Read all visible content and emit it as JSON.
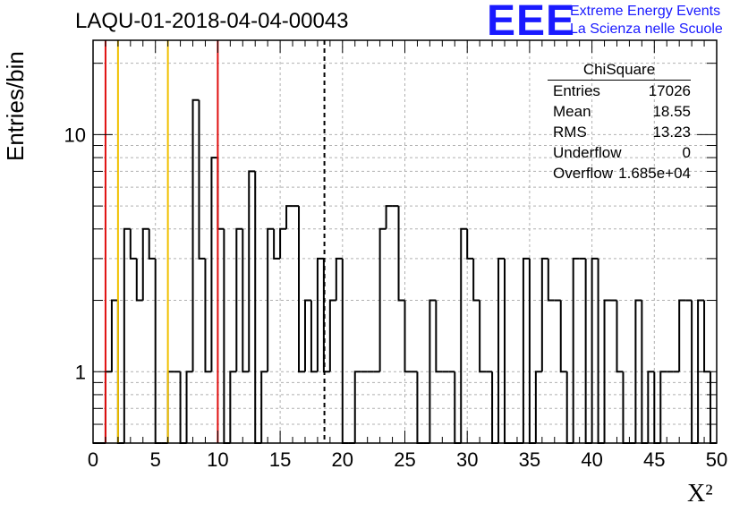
{
  "header": {
    "title": "LAQU-01-2018-04-04-00043",
    "logo_text": "EEE",
    "logo_line1": "Extreme Energy Events",
    "logo_line2": "La Scienza nelle Scuole"
  },
  "stats_box": {
    "name": "ChiSquare",
    "rows": [
      {
        "label": "Entries",
        "value": "17026"
      },
      {
        "label": "Mean",
        "value": "18.55"
      },
      {
        "label": "RMS",
        "value": "13.23"
      },
      {
        "label": "Underflow",
        "value": "0"
      },
      {
        "label": "Overflow",
        "value": "1.685e+04"
      }
    ]
  },
  "colors": {
    "red_line": "#e01010",
    "yellow_line": "#f0c000",
    "histogram": "#000000",
    "grid": "#b0b0b0",
    "logo": "#1a1aff"
  },
  "chart_data": {
    "type": "histogram",
    "title": "LAQU-01-2018-04-04-00043",
    "xlabel": "X²",
    "ylabel": "Entries/bin",
    "xlim": [
      0,
      50
    ],
    "ylim": [
      0.5,
      25
    ],
    "yscale": "log",
    "grid": true,
    "bin_width": 0.5,
    "x_ticks": [
      "0",
      "5",
      "10",
      "15",
      "20",
      "25",
      "30",
      "35",
      "40",
      "45",
      "50"
    ],
    "y_ticks": [
      "1",
      "10"
    ],
    "bin_contents": [
      0,
      0,
      1,
      2,
      0,
      4,
      3,
      2,
      4,
      3,
      0,
      0,
      1,
      1,
      0,
      1,
      14,
      3,
      1,
      8,
      4,
      0,
      1,
      4,
      1,
      7,
      0,
      1,
      4,
      3,
      4,
      5,
      5,
      1,
      2,
      1,
      3,
      1,
      2,
      3,
      0,
      0,
      1,
      1,
      1,
      1,
      4,
      5,
      5,
      2,
      1,
      1,
      0,
      0,
      2,
      1,
      1,
      1,
      0,
      4,
      3,
      2,
      1,
      1,
      0,
      3,
      0,
      0,
      0,
      3,
      0,
      1,
      3,
      2,
      2,
      1,
      0,
      3,
      3,
      0,
      3,
      0,
      2,
      2,
      1,
      0,
      0,
      2,
      0,
      1,
      0,
      1,
      1,
      1,
      2,
      2,
      0,
      2,
      1,
      0
    ],
    "vertical_lines": [
      {
        "x": 1,
        "style": "solid",
        "color": "red"
      },
      {
        "x": 2,
        "style": "solid",
        "color": "yellow"
      },
      {
        "x": 6,
        "style": "solid",
        "color": "yellow"
      },
      {
        "x": 10,
        "style": "solid",
        "color": "red"
      },
      {
        "x": 18.55,
        "style": "dashed",
        "color": "black"
      }
    ]
  }
}
